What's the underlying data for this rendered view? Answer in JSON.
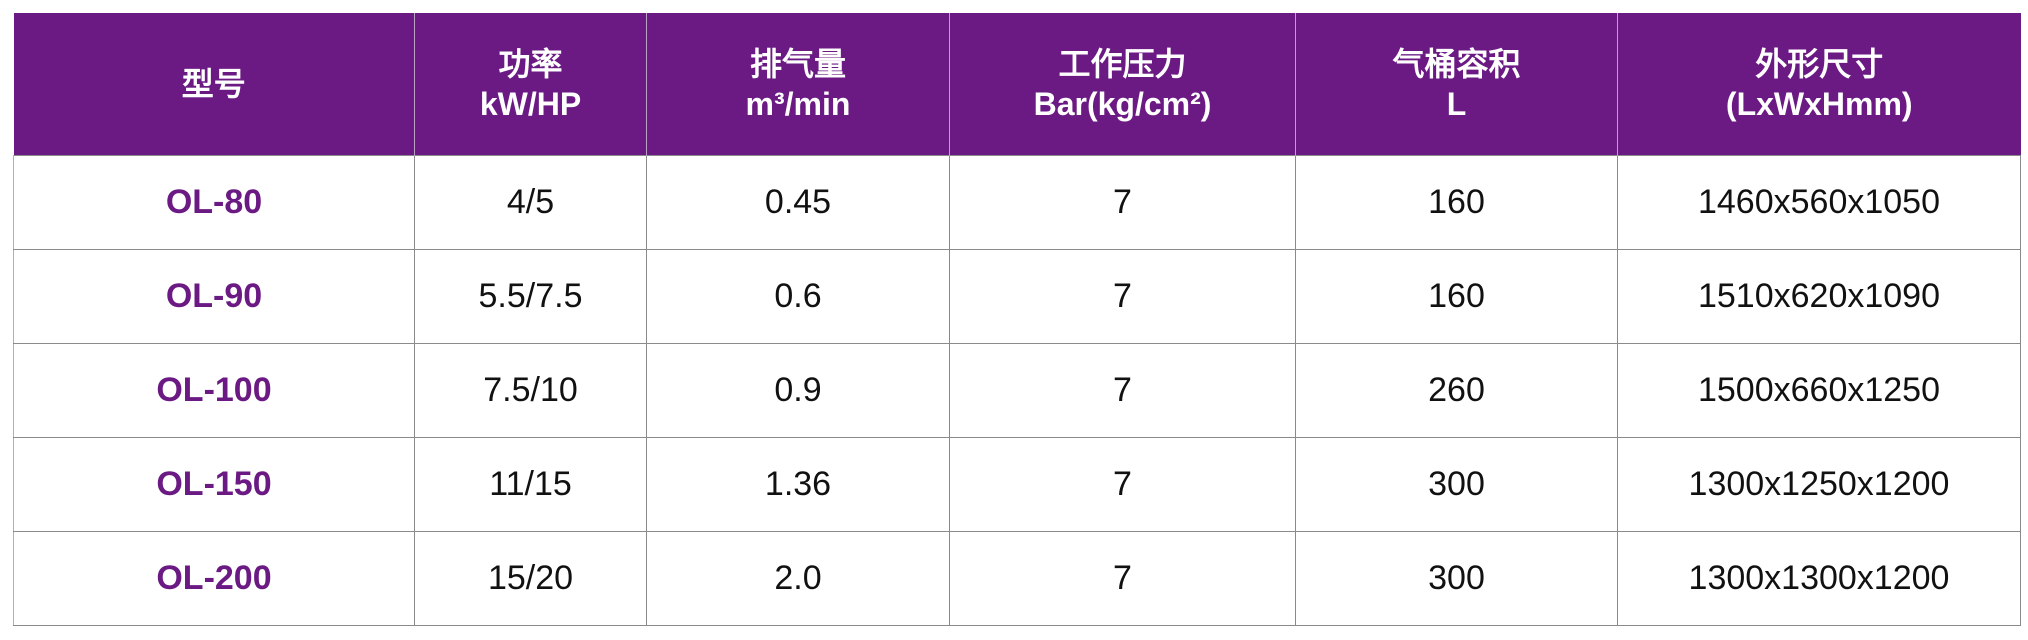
{
  "colors": {
    "header_bg": "#6b1a84",
    "model_text": "#6b1a84"
  },
  "table": {
    "headers": [
      {
        "line1": "型号",
        "line2": ""
      },
      {
        "line1": "功率",
        "line2": "kW/HP"
      },
      {
        "line1": "排气量",
        "line2": "m³/min"
      },
      {
        "line1": "工作压力",
        "line2": "Bar(kg/cm²)"
      },
      {
        "line1": "气桶容积",
        "line2": "L"
      },
      {
        "line1": "外形尺寸",
        "line2": "(LxWxHmm)"
      }
    ],
    "rows": [
      [
        "OL-80",
        "4/5",
        "0.45",
        "7",
        "160",
        "1460x560x1050"
      ],
      [
        "OL-90",
        "5.5/7.5",
        "0.6",
        "7",
        "160",
        "1510x620x1090"
      ],
      [
        "OL-100",
        "7.5/10",
        "0.9",
        "7",
        "260",
        "1500x660x1250"
      ],
      [
        "OL-150",
        "11/15",
        "1.36",
        "7",
        "300",
        "1300x1250x1200"
      ],
      [
        "OL-200",
        "15/20",
        "2.0",
        "7",
        "300",
        "1300x1300x1200"
      ]
    ]
  }
}
